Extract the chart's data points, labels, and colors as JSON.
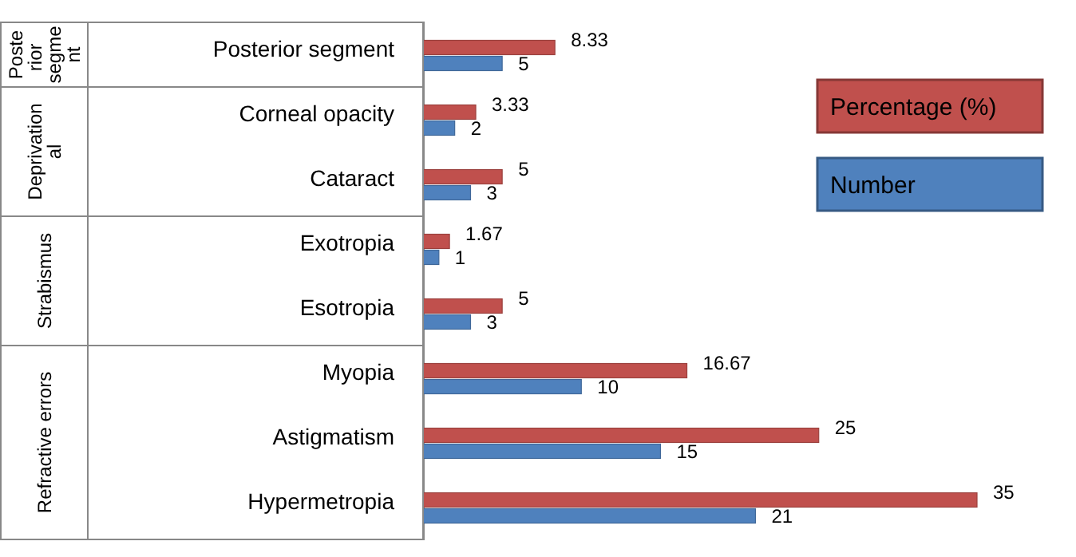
{
  "chart_data": {
    "type": "bar",
    "orientation": "horizontal",
    "categories": [
      "Posterior segment",
      "Corneal opacity",
      "Cataract",
      "Exotropia",
      "Esotropia",
      "Myopia",
      "Astigmatism",
      "Hypermetropia"
    ],
    "series": [
      {
        "name": "Percentage (%)",
        "color": "#c0504d",
        "values": [
          8.33,
          3.33,
          5,
          1.67,
          5,
          16.67,
          25,
          35
        ]
      },
      {
        "name": "Number",
        "color": "#4f81bd",
        "values": [
          5,
          2,
          3,
          1,
          3,
          10,
          15,
          21
        ]
      }
    ],
    "data_labels": true,
    "legend": "top right",
    "annotations": [
      "Posterior segment",
      "Deprivational",
      "Strabismus",
      "Refractive errors"
    ]
  }
}
